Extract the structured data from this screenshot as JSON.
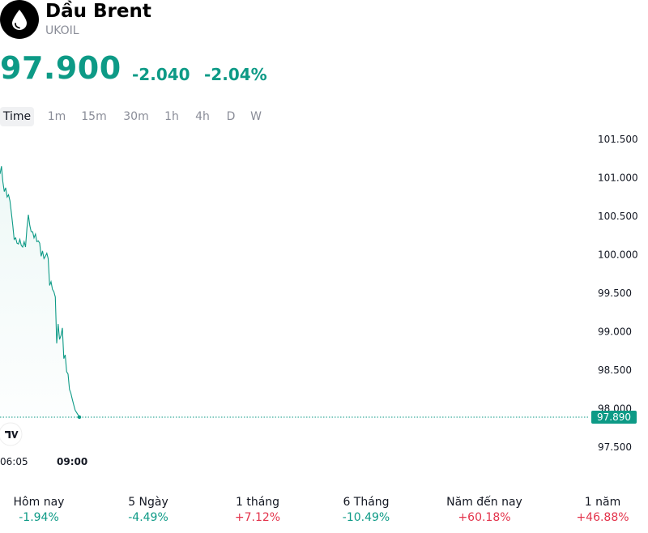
{
  "header": {
    "logo_icon": "oil-drop-icon",
    "title": "Dầu Brent",
    "symbol": "UKOIL",
    "price": "97.900",
    "change_abs": "-2.040",
    "change_pct": "-2.04%",
    "change_color": "#0d9a86"
  },
  "intervals": [
    "Time",
    "1m",
    "15m",
    "30m",
    "1h",
    "4h",
    "D",
    "W"
  ],
  "active_interval": "Time",
  "chart_data": {
    "type": "area",
    "color": "#0d9a86",
    "y_ticks": [
      "101.500",
      "101.000",
      "100.500",
      "100.000",
      "99.500",
      "99.000",
      "98.500",
      "98.000",
      "97.500"
    ],
    "ylim": [
      97.5,
      101.5
    ],
    "x_labels": [
      {
        "label": "06:05",
        "value": "06:05",
        "bold": false
      },
      {
        "label": "09:00",
        "value": "09:00",
        "bold": true
      }
    ],
    "last_price_label": "97.890",
    "last_price": 97.89,
    "grid": false,
    "series": [
      {
        "x": [
          "06:05",
          "06:06",
          "06:07",
          "06:08",
          "06:09",
          "06:10",
          "06:11",
          "06:12",
          "06:13",
          "06:14",
          "06:15",
          "06:16",
          "06:17",
          "06:18",
          "06:19",
          "06:20",
          "06:21",
          "06:22",
          "06:23",
          "06:24",
          "06:25",
          "06:26",
          "06:27",
          "06:28",
          "06:29",
          "06:30",
          "06:31",
          "06:32",
          "06:33",
          "06:34",
          "06:35",
          "06:36",
          "06:37",
          "06:38",
          "06:39",
          "06:40",
          "06:41",
          "06:42",
          "06:43",
          "06:44",
          "06:45",
          "06:46",
          "06:47",
          "06:48",
          "06:49",
          "06:50",
          "06:51",
          "06:52",
          "06:53",
          "06:54",
          "06:55",
          "06:56",
          "06:57",
          "06:58",
          "06:59",
          "07:00",
          "07:01"
        ],
        "values": [
          101.05,
          101.15,
          100.95,
          100.82,
          100.87,
          100.75,
          100.78,
          100.7,
          100.55,
          100.38,
          100.2,
          100.22,
          100.15,
          100.14,
          100.2,
          100.12,
          100.1,
          100.17,
          100.1,
          100.35,
          100.52,
          100.38,
          100.3,
          100.3,
          100.22,
          100.27,
          100.17,
          100.18,
          100.15,
          99.98,
          100.05,
          99.95,
          99.98,
          100.02,
          99.95,
          99.6,
          99.65,
          99.55,
          99.52,
          99.45,
          98.85,
          99.1,
          98.9,
          98.95,
          99.05,
          98.65,
          98.7,
          98.48,
          98.45,
          98.25,
          98.2,
          98.12,
          98.05,
          97.98,
          97.95,
          97.92,
          97.89
        ]
      }
    ]
  },
  "periods": [
    {
      "label": "Hôm nay",
      "value": "-1.94%",
      "dir": "down"
    },
    {
      "label": "5 Ngày",
      "value": "-4.49%",
      "dir": "down"
    },
    {
      "label": "1 tháng",
      "value": "+7.12%",
      "dir": "up"
    },
    {
      "label": "6 Tháng",
      "value": "-10.49%",
      "dir": "down"
    },
    {
      "label": "Năm đến nay",
      "value": "+60.18%",
      "dir": "up"
    },
    {
      "label": "1 năm",
      "value": "+46.88%",
      "dir": "up"
    }
  ],
  "colors": {
    "down": "#0d9a86",
    "up": "#e3334b"
  },
  "watermark_icon": "tradingview-logo-icon"
}
